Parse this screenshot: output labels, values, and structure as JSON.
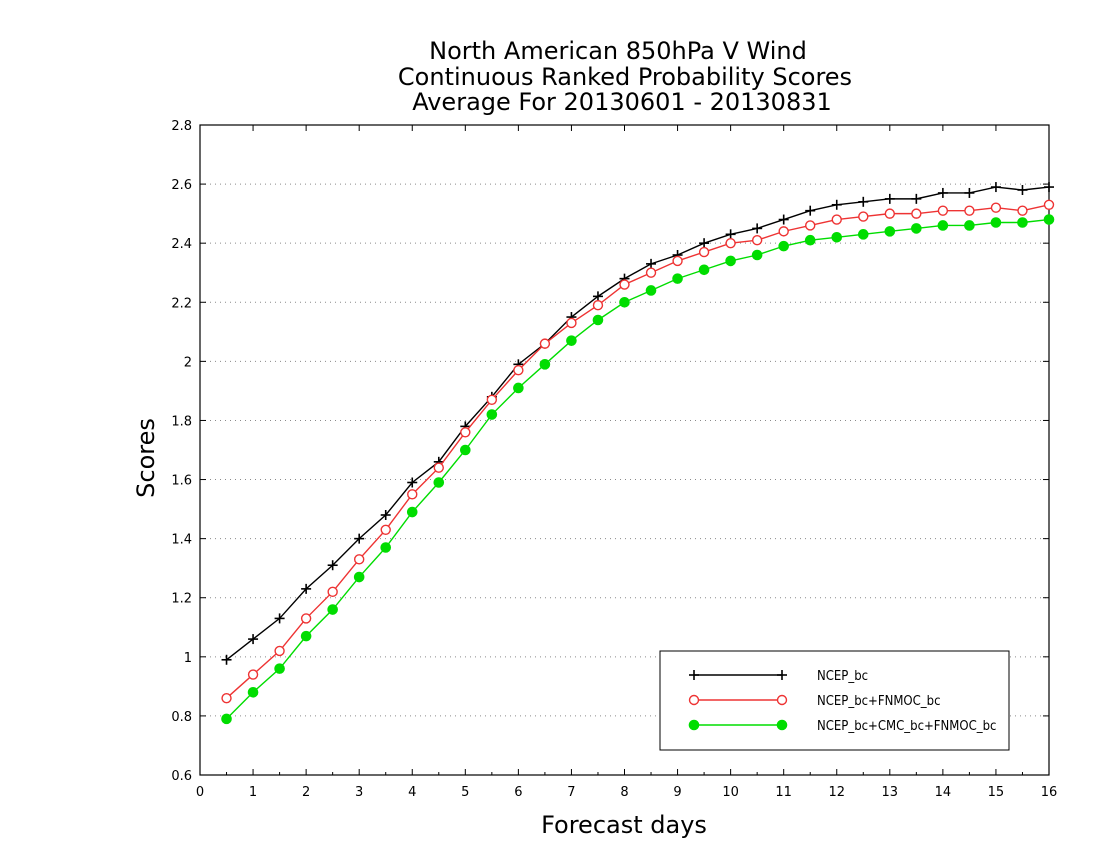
{
  "chart_data": {
    "type": "line",
    "title": [
      "North American 850hPa V Wind",
      "Continuous Ranked Probability Scores",
      "Average For 20130601 - 20130831"
    ],
    "xlabel": "Forecast days",
    "ylabel": "Scores",
    "xlim": [
      0,
      16
    ],
    "ylim": [
      0.6,
      2.8
    ],
    "xticks": [
      0,
      1,
      2,
      3,
      4,
      5,
      6,
      7,
      8,
      9,
      10,
      11,
      12,
      13,
      14,
      15,
      16
    ],
    "xtick_labels": [
      "0",
      "1",
      "2",
      "3",
      "4",
      "5",
      "6",
      "7",
      "8",
      "9",
      "10",
      "11",
      "12",
      "13",
      "14",
      "15",
      "16"
    ],
    "yticks": [
      0.6,
      0.8,
      1,
      1.2,
      1.4,
      1.6,
      1.8,
      2,
      2.2,
      2.4,
      2.6,
      2.8
    ],
    "ytick_labels": [
      "0.6",
      "0.8",
      "1",
      "1.2",
      "1.4",
      "1.6",
      "1.8",
      "2",
      "2.2",
      "2.4",
      "2.6",
      "2.8"
    ],
    "grid": "horizontal dotted",
    "legend_position": "bottom-right",
    "x": [
      0.5,
      1,
      1.5,
      2,
      2.5,
      3,
      3.5,
      4,
      4.5,
      5,
      5.5,
      6,
      6.5,
      7,
      7.5,
      8,
      8.5,
      9,
      9.5,
      10,
      10.5,
      11,
      11.5,
      12,
      12.5,
      13,
      13.5,
      14,
      14.5,
      15,
      15.5,
      16
    ],
    "series": [
      {
        "name": "NCEP_bc",
        "color": "#000000",
        "marker": "plus",
        "values": [
          0.99,
          1.06,
          1.13,
          1.23,
          1.31,
          1.4,
          1.48,
          1.59,
          1.66,
          1.78,
          1.88,
          1.99,
          2.06,
          2.15,
          2.22,
          2.28,
          2.33,
          2.36,
          2.4,
          2.43,
          2.45,
          2.48,
          2.51,
          2.53,
          2.54,
          2.55,
          2.55,
          2.57,
          2.57,
          2.59,
          2.58,
          2.59
        ]
      },
      {
        "name": "NCEP_bc+FNMOC_bc",
        "color": "#ee3333",
        "marker": "open-circle",
        "values": [
          0.86,
          0.94,
          1.02,
          1.13,
          1.22,
          1.33,
          1.43,
          1.55,
          1.64,
          1.76,
          1.87,
          1.97,
          2.06,
          2.13,
          2.19,
          2.26,
          2.3,
          2.34,
          2.37,
          2.4,
          2.41,
          2.44,
          2.46,
          2.48,
          2.49,
          2.5,
          2.5,
          2.51,
          2.51,
          2.52,
          2.51,
          2.53
        ]
      },
      {
        "name": "NCEP_bc+CMC_bc+FNMOC_bc",
        "color": "#00dd00",
        "marker": "filled-circle",
        "values": [
          0.79,
          0.88,
          0.96,
          1.07,
          1.16,
          1.27,
          1.37,
          1.49,
          1.59,
          1.7,
          1.82,
          1.91,
          1.99,
          2.07,
          2.14,
          2.2,
          2.24,
          2.28,
          2.31,
          2.34,
          2.36,
          2.39,
          2.41,
          2.42,
          2.43,
          2.44,
          2.45,
          2.46,
          2.46,
          2.47,
          2.47,
          2.48
        ]
      }
    ]
  }
}
